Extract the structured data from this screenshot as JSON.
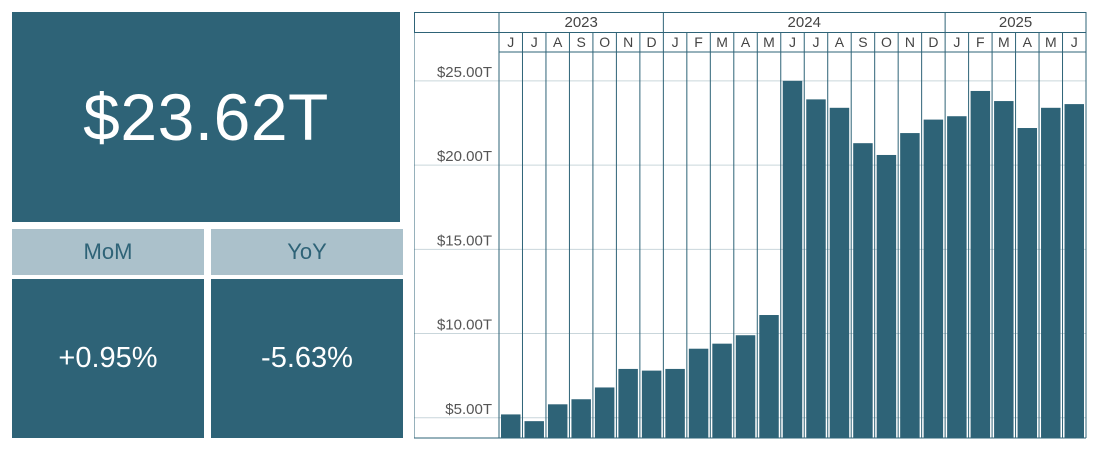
{
  "kpi": {
    "current": "$23.62T",
    "mom_label": "MoM",
    "yoy_label": "YoY",
    "mom_value": "+0.95%",
    "yoy_value": "-5.63%"
  },
  "colors": {
    "primary": "#2e6377",
    "label_bg": "#abc1cb",
    "grid": "#c9d6db"
  },
  "chart_data": {
    "type": "bar",
    "title": "",
    "xlabel": "",
    "ylabel": "",
    "years": [
      {
        "label": "2023",
        "months": [
          "J",
          "J",
          "A",
          "S",
          "O",
          "N",
          "D"
        ]
      },
      {
        "label": "2024",
        "months": [
          "J",
          "F",
          "M",
          "A",
          "M",
          "J",
          "J",
          "A",
          "S",
          "O",
          "N",
          "D"
        ]
      },
      {
        "label": "2025",
        "months": [
          "J",
          "F",
          "M",
          "A",
          "M",
          "J"
        ]
      }
    ],
    "categories": [
      "2023-06",
      "2023-07",
      "2023-08",
      "2023-09",
      "2023-10",
      "2023-11",
      "2023-12",
      "2024-01",
      "2024-02",
      "2024-03",
      "2024-04",
      "2024-05",
      "2024-06",
      "2024-07",
      "2024-08",
      "2024-09",
      "2024-10",
      "2024-11",
      "2024-12",
      "2025-01",
      "2025-02",
      "2025-03",
      "2025-04",
      "2025-05",
      "2025-06"
    ],
    "values": [
      5.2,
      4.8,
      5.8,
      6.1,
      6.8,
      7.9,
      7.8,
      7.9,
      9.1,
      9.4,
      9.9,
      11.1,
      25.0,
      23.9,
      23.4,
      21.3,
      20.6,
      21.9,
      22.7,
      22.9,
      24.4,
      23.8,
      22.2,
      23.4,
      23.62
    ],
    "y_ticks": [
      5,
      10,
      15,
      20,
      25
    ],
    "y_tick_labels": [
      "$5.00T",
      "$10.00T",
      "$15.00T",
      "$20.00T",
      "$25.00T"
    ],
    "ylim": [
      3.8,
      26.0
    ],
    "grid": true,
    "legend": "none"
  }
}
